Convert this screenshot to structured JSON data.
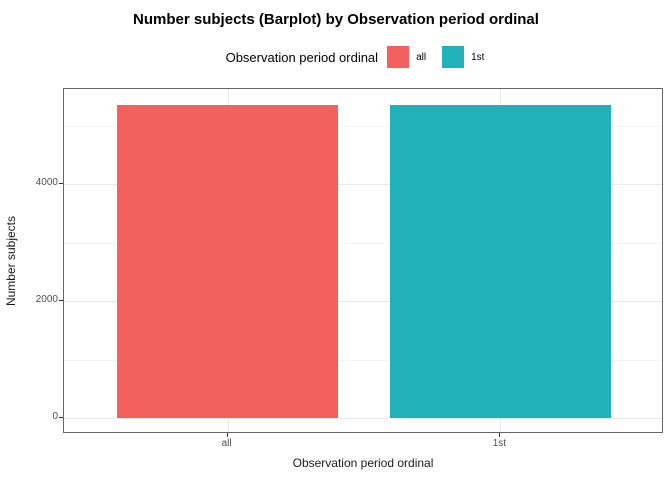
{
  "title": "Number subjects (Barplot) by Observation period ordinal",
  "legend": {
    "title": "Observation period ordinal",
    "items": [
      {
        "label": "all",
        "color": "#f2615d"
      },
      {
        "label": "1st",
        "color": "#21b1b9"
      }
    ]
  },
  "chart_data": {
    "type": "bar",
    "title": "Number subjects (Barplot) by Observation period ordinal",
    "categories": [
      "all",
      "1st"
    ],
    "values": [
      5360,
      5360
    ],
    "bar_colors": [
      "#f2615d",
      "#21b1b9"
    ],
    "xlabel": "Observation period ordinal",
    "ylabel": "Number subjects",
    "y_major_ticks": [
      0,
      2000,
      4000
    ],
    "y_major_tick_labels": [
      "0",
      "2000",
      "4000"
    ],
    "y_minor_ticks": [
      1000,
      3000,
      5000
    ],
    "ylim": [
      -268,
      5628
    ],
    "bar_rel_width": 0.81,
    "grid": true,
    "legend_position": "top",
    "colors": {
      "panel_border": "#666666",
      "grid_major": "#e8e8e8",
      "grid_minor": "#f4f4f4",
      "tick": "#333333",
      "axis_text": "#4d4d4d",
      "background": "#ffffff"
    }
  }
}
